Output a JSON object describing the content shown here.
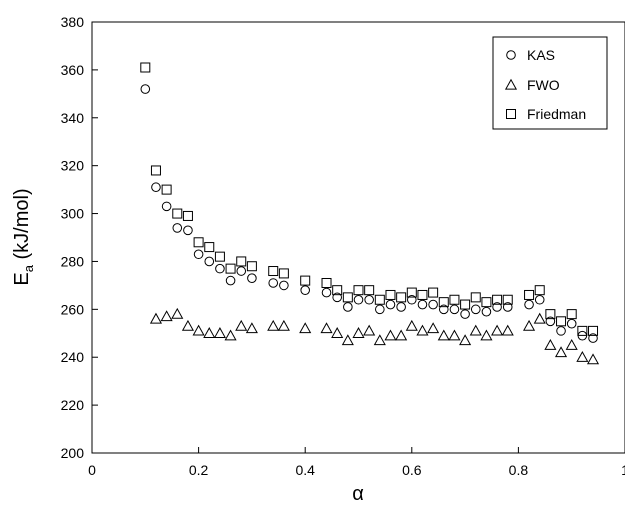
{
  "chart_data": {
    "type": "scatter",
    "xlabel": "α",
    "ylabel_main": "E",
    "ylabel_sub": "a",
    "ylabel_rest": " (kJ/mol)",
    "xlim": [
      0,
      1
    ],
    "ylim": [
      200,
      380
    ],
    "xticks": [
      0,
      0.2,
      0.4,
      0.6,
      0.8,
      1
    ],
    "xtick_labels": [
      "0",
      "0.2",
      "0.4",
      "0.6",
      "0.8",
      "1"
    ],
    "yticks": [
      200,
      220,
      240,
      260,
      280,
      300,
      320,
      340,
      360,
      380
    ],
    "ytick_labels": [
      "200",
      "220",
      "240",
      "260",
      "280",
      "300",
      "320",
      "340",
      "360",
      "380"
    ],
    "grid": false,
    "legend_position": "top-right",
    "series": [
      {
        "name": "KAS",
        "marker": "circle",
        "x": [
          0.1,
          0.12,
          0.14,
          0.16,
          0.18,
          0.2,
          0.22,
          0.24,
          0.26,
          0.28,
          0.3,
          0.34,
          0.36,
          0.4,
          0.44,
          0.46,
          0.48,
          0.5,
          0.52,
          0.54,
          0.56,
          0.58,
          0.6,
          0.62,
          0.64,
          0.66,
          0.68,
          0.7,
          0.72,
          0.74,
          0.76,
          0.78,
          0.82,
          0.84,
          0.86,
          0.88,
          0.9,
          0.92,
          0.94
        ],
        "y": [
          352,
          311,
          303,
          294,
          293,
          283,
          280,
          277,
          272,
          276,
          273,
          271,
          270,
          268,
          267,
          265,
          261,
          264,
          264,
          260,
          262,
          261,
          264,
          262,
          262,
          260,
          260,
          258,
          260,
          259,
          261,
          261,
          262,
          264,
          255,
          251,
          254,
          249,
          248
        ]
      },
      {
        "name": "FWO",
        "marker": "triangle",
        "x": [
          0.12,
          0.14,
          0.16,
          0.18,
          0.2,
          0.22,
          0.24,
          0.26,
          0.28,
          0.3,
          0.34,
          0.36,
          0.4,
          0.44,
          0.46,
          0.48,
          0.5,
          0.52,
          0.54,
          0.56,
          0.58,
          0.6,
          0.62,
          0.64,
          0.66,
          0.68,
          0.7,
          0.72,
          0.74,
          0.76,
          0.78,
          0.82,
          0.84,
          0.86,
          0.88,
          0.9,
          0.92,
          0.94
        ],
        "y": [
          256,
          257,
          258,
          253,
          251,
          250,
          250,
          249,
          253,
          252,
          253,
          253,
          252,
          252,
          250,
          247,
          250,
          251,
          247,
          249,
          249,
          253,
          251,
          252,
          249,
          249,
          247,
          251,
          249,
          251,
          251,
          253,
          256,
          245,
          242,
          245,
          240,
          239
        ]
      },
      {
        "name": "Friedman",
        "marker": "square",
        "x": [
          0.1,
          0.12,
          0.14,
          0.16,
          0.18,
          0.2,
          0.22,
          0.24,
          0.26,
          0.28,
          0.3,
          0.34,
          0.36,
          0.4,
          0.44,
          0.46,
          0.48,
          0.5,
          0.52,
          0.54,
          0.56,
          0.58,
          0.6,
          0.62,
          0.64,
          0.66,
          0.68,
          0.7,
          0.72,
          0.74,
          0.76,
          0.78,
          0.82,
          0.84,
          0.86,
          0.88,
          0.9,
          0.92,
          0.94
        ],
        "y": [
          361,
          318,
          310,
          300,
          299,
          288,
          286,
          282,
          277,
          280,
          278,
          276,
          275,
          272,
          271,
          268,
          265,
          268,
          268,
          264,
          266,
          265,
          267,
          266,
          267,
          263,
          264,
          262,
          265,
          263,
          264,
          264,
          266,
          268,
          258,
          255,
          258,
          251,
          251
        ]
      }
    ]
  }
}
